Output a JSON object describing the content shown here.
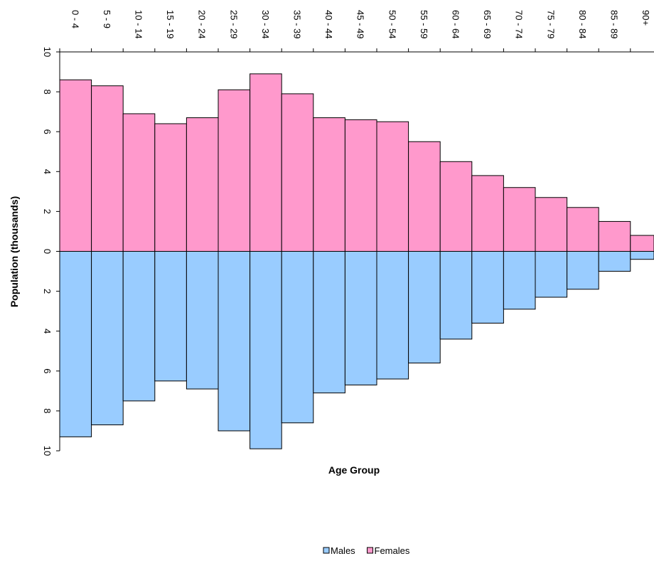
{
  "chart_data": {
    "type": "bar",
    "orientation": "population-pyramid",
    "xlabel": "Age Group",
    "ylabel": "Population (thousands)",
    "ylim": [
      -10,
      10
    ],
    "y_ticks": [
      10,
      8,
      6,
      4,
      2,
      0,
      2,
      4,
      6,
      8,
      10
    ],
    "categories": [
      "0 - 4",
      "5 - 9",
      "10 - 14",
      "15 - 19",
      "20 - 24",
      "25 - 29",
      "30 - 34",
      "35 - 39",
      "40 - 44",
      "45 - 49",
      "50 - 54",
      "55 - 59",
      "60 - 64",
      "65 - 69",
      "70 - 74",
      "75 - 79",
      "80 - 84",
      "85 - 89",
      "90+"
    ],
    "series": [
      {
        "name": "Males",
        "color": "#99ccff",
        "values": [
          9.3,
          8.7,
          7.5,
          6.5,
          6.9,
          9.0,
          9.9,
          8.6,
          7.1,
          6.7,
          6.4,
          5.6,
          4.4,
          3.6,
          2.9,
          2.3,
          1.9,
          1.0,
          0.4
        ]
      },
      {
        "name": "Females",
        "color": "#ff99cc",
        "values": [
          8.6,
          8.3,
          6.9,
          6.4,
          6.7,
          8.1,
          8.9,
          7.9,
          6.7,
          6.6,
          6.5,
          5.5,
          4.5,
          3.8,
          3.2,
          2.7,
          2.2,
          1.5,
          0.8
        ]
      }
    ],
    "negative_tick_color": "#ff0000",
    "grid": false,
    "legend_position": "bottom"
  }
}
